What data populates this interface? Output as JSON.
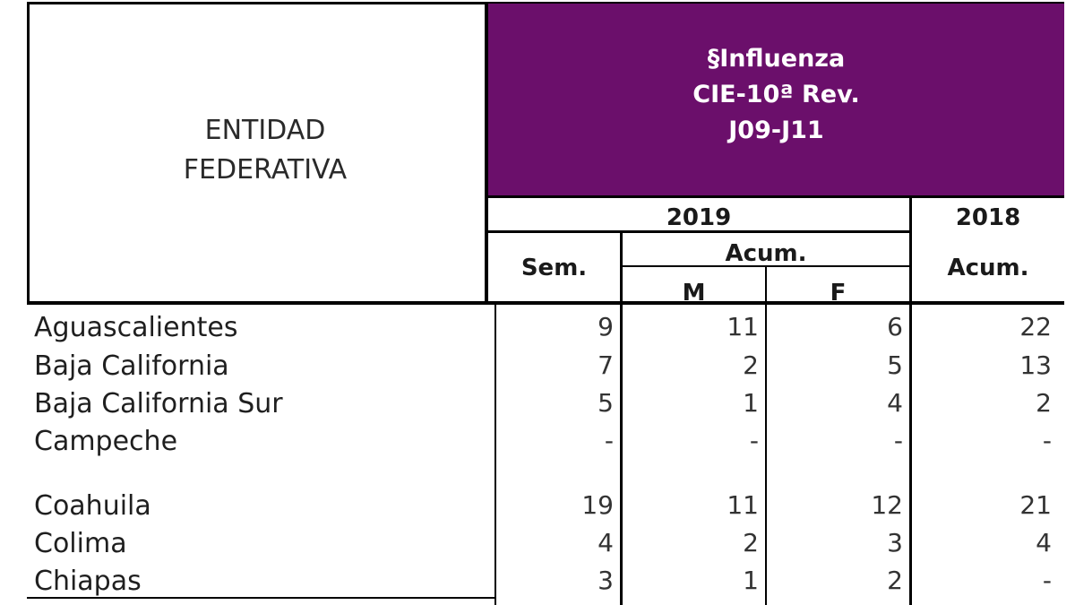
{
  "header": {
    "entity_line1": "ENTIDAD",
    "entity_line2": "FEDERATIVA",
    "disease_line1": "§Influenza",
    "disease_line2": "CIE-10ª Rev.",
    "disease_line3": "J09-J11",
    "year_current": "2019",
    "year_previous": "2018",
    "col_week": "Sem.",
    "col_cumulative": "Acum.",
    "col_male": "M",
    "col_female": "F",
    "col_prev_cumulative": "Acum."
  },
  "colors": {
    "header_bg": "#6b0f6b",
    "header_text": "#ffffff"
  },
  "rows": [
    {
      "entity": "Aguascalientes",
      "sem": "9",
      "m": "11",
      "f": "6",
      "acum_2018": "22"
    },
    {
      "entity": "Baja California",
      "sem": "7",
      "m": "2",
      "f": "5",
      "acum_2018": "13"
    },
    {
      "entity": "Baja California Sur",
      "sem": "5",
      "m": "1",
      "f": "4",
      "acum_2018": "2"
    },
    {
      "entity": "Campeche",
      "sem": "-",
      "m": "-",
      "f": "-",
      "acum_2018": "-"
    },
    {
      "entity": "Coahuila",
      "sem": "19",
      "m": "11",
      "f": "12",
      "acum_2018": "21"
    },
    {
      "entity": "Colima",
      "sem": "4",
      "m": "2",
      "f": "3",
      "acum_2018": "4"
    },
    {
      "entity": "Chiapas",
      "sem": "3",
      "m": "1",
      "f": "2",
      "acum_2018": "-"
    }
  ]
}
